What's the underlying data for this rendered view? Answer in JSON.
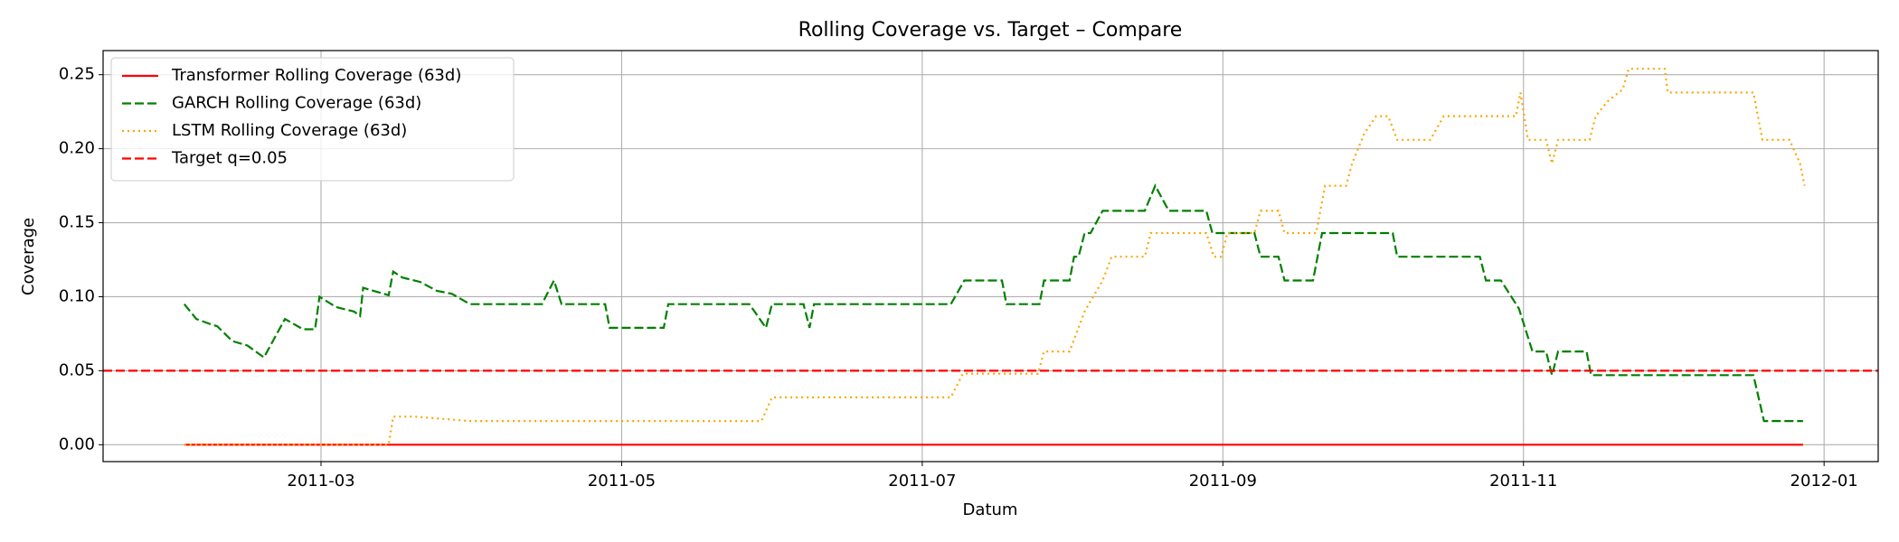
{
  "chart_data": {
    "type": "line",
    "title": "Rolling Coverage vs. Target – Compare",
    "x_label": "Datum",
    "y_label": "Coverage",
    "xlim": [
      0.55,
      12.36
    ],
    "ylim": [
      -0.0114,
      0.2663
    ],
    "xticks": [
      {
        "value": 2,
        "label": "2011-03"
      },
      {
        "value": 4,
        "label": "2011-05"
      },
      {
        "value": 6,
        "label": "2011-07"
      },
      {
        "value": 8,
        "label": "2011-09"
      },
      {
        "value": 10,
        "label": "2011-11"
      },
      {
        "value": 12,
        "label": "2012-01"
      }
    ],
    "yticks": [
      {
        "value": 0,
        "label": "0.00"
      },
      0.05,
      {
        "value": 0.1,
        "label": "0.10"
      },
      0.15,
      {
        "value": 0.2,
        "label": "0.20"
      },
      0.25
    ],
    "grid": true,
    "legend": "upper left",
    "series": [
      {
        "name": "Transformer Rolling Coverage (63d)",
        "color": "#ff0000",
        "style": "solid",
        "x": [
          1.09,
          11.86
        ],
        "values": [
          0,
          0
        ]
      },
      {
        "name": "GARCH Rolling Coverage (63d)",
        "color": "#008000",
        "style": "dashed",
        "x": [
          1.09,
          1.17,
          1.25,
          1.31,
          1.41,
          1.51,
          1.62,
          1.76,
          1.88,
          1.96,
          1.99,
          2.1,
          2.22,
          2.26,
          2.28,
          2.45,
          2.48,
          2.54,
          2.66,
          2.77,
          2.87,
          2.99,
          3.47,
          3.55,
          3.6,
          3.89,
          3.92,
          4.28,
          4.31,
          4.85,
          4.96,
          5.0,
          5.21,
          5.25,
          5.28,
          6.19,
          6.28,
          6.53,
          6.56,
          6.78,
          6.81,
          6.98,
          7.01,
          7.04,
          7.08,
          7.12,
          7.2,
          7.48,
          7.55,
          7.64,
          7.89,
          7.93,
          8.21,
          8.25,
          8.37,
          8.41,
          8.6,
          8.66,
          9.13,
          9.16,
          9.71,
          9.75,
          9.85,
          9.97,
          10.01,
          10.06,
          10.15,
          10.19,
          10.23,
          10.42,
          10.45,
          11.53,
          11.6,
          11.86
        ],
        "values": [
          0.095,
          0.085,
          0.082,
          0.08,
          0.07,
          0.067,
          0.059,
          0.085,
          0.078,
          0.078,
          0.1,
          0.093,
          0.09,
          0.087,
          0.106,
          0.101,
          0.117,
          0.113,
          0.11,
          0.104,
          0.102,
          0.095,
          0.095,
          0.111,
          0.095,
          0.095,
          0.079,
          0.079,
          0.095,
          0.095,
          0.079,
          0.095,
          0.095,
          0.079,
          0.095,
          0.095,
          0.111,
          0.111,
          0.095,
          0.095,
          0.111,
          0.111,
          0.127,
          0.127,
          0.143,
          0.143,
          0.158,
          0.158,
          0.175,
          0.158,
          0.158,
          0.143,
          0.143,
          0.127,
          0.127,
          0.111,
          0.111,
          0.143,
          0.143,
          0.127,
          0.127,
          0.111,
          0.111,
          0.092,
          0.079,
          0.063,
          0.063,
          0.047,
          0.063,
          0.063,
          0.047,
          0.047,
          0.016,
          0.016
        ]
      },
      {
        "name": "LSTM Rolling Coverage (63d)",
        "color": "#ffa500",
        "style": "dotted",
        "x": [
          1.09,
          2.45,
          2.48,
          2.62,
          2.99,
          4.93,
          5.0,
          6.19,
          6.27,
          6.77,
          6.81,
          6.98,
          7.04,
          7.08,
          7.2,
          7.26,
          7.48,
          7.52,
          7.89,
          7.94,
          7.99,
          8.03,
          8.21,
          8.25,
          8.37,
          8.41,
          8.62,
          8.68,
          8.82,
          8.86,
          8.94,
          9.02,
          9.1,
          9.16,
          9.38,
          9.47,
          9.95,
          9.98,
          10.03,
          10.15,
          10.19,
          10.23,
          10.44,
          10.48,
          10.56,
          10.66,
          10.7,
          10.94,
          10.96,
          11.53,
          11.59,
          11.77,
          11.84,
          11.87
        ],
        "values": [
          0,
          0,
          0.019,
          0.019,
          0.016,
          0.016,
          0.032,
          0.032,
          0.048,
          0.048,
          0.063,
          0.063,
          0.079,
          0.09,
          0.111,
          0.127,
          0.127,
          0.143,
          0.143,
          0.127,
          0.127,
          0.143,
          0.143,
          0.158,
          0.158,
          0.143,
          0.143,
          0.175,
          0.175,
          0.19,
          0.21,
          0.222,
          0.222,
          0.206,
          0.206,
          0.222,
          0.222,
          0.238,
          0.206,
          0.206,
          0.19,
          0.206,
          0.206,
          0.222,
          0.232,
          0.24,
          0.254,
          0.254,
          0.238,
          0.238,
          0.206,
          0.206,
          0.19,
          0.175
        ]
      }
    ],
    "reference_lines": [
      {
        "name": "Target q=0.05",
        "value": 0.05,
        "color": "#ff0000",
        "style": "dashed"
      }
    ]
  }
}
